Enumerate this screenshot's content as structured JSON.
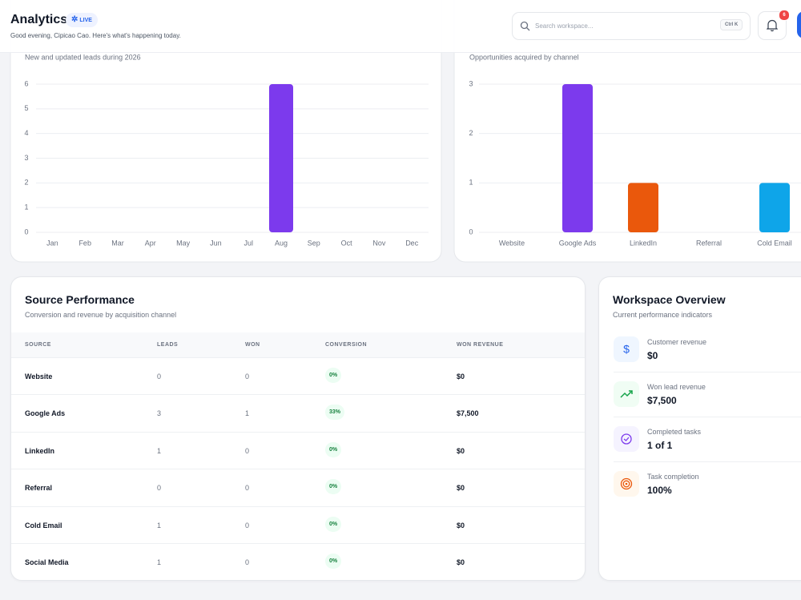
{
  "header": {
    "title": "Analytics",
    "badge": "LIVE",
    "subtitle": "Good evening, Cipicao Cao. Here's what's happening today.",
    "search_placeholder": "Search workspace...",
    "shortcut": "Ctrl K",
    "notifications": "6"
  },
  "chart_data": [
    {
      "type": "bar",
      "subtitle": "New and updated leads during 2026",
      "categories": [
        "Jan",
        "Feb",
        "Mar",
        "Apr",
        "May",
        "Jun",
        "Jul",
        "Aug",
        "Sep",
        "Oct",
        "Nov",
        "Dec"
      ],
      "values": [
        0,
        0,
        0,
        0,
        0,
        0,
        0,
        6,
        0,
        0,
        0,
        0
      ],
      "color": "#7c3aed",
      "ylim": [
        0,
        6
      ],
      "yticks": [
        0,
        1,
        2,
        3,
        4,
        5,
        6
      ],
      "grid": true
    },
    {
      "type": "bar",
      "subtitle": "Opportunities acquired by channel",
      "categories": [
        "Website",
        "Google Ads",
        "LinkedIn",
        "Referral",
        "Cold Email"
      ],
      "values": [
        0,
        3,
        1,
        0,
        1
      ],
      "colors": [
        "#7c3aed",
        "#7c3aed",
        "#ea580c",
        "#0ea5e9",
        "#0ea5e9"
      ],
      "ylim": [
        0,
        3
      ],
      "yticks": [
        0,
        1,
        2,
        3
      ],
      "grid": true
    }
  ],
  "source_performance": {
    "title": "Source Performance",
    "subtitle": "Conversion and revenue by acquisition channel",
    "columns": [
      "SOURCE",
      "LEADS",
      "WON",
      "CONVERSION",
      "WON REVENUE"
    ],
    "rows": [
      [
        "Website",
        "0",
        "0",
        "0%",
        "$0"
      ],
      [
        "Google Ads",
        "3",
        "1",
        "33%",
        "$7,500"
      ],
      [
        "LinkedIn",
        "1",
        "0",
        "0%",
        "$0"
      ],
      [
        "Referral",
        "0",
        "0",
        "0%",
        "$0"
      ],
      [
        "Cold Email",
        "1",
        "0",
        "0%",
        "$0"
      ],
      [
        "Social Media",
        "1",
        "0",
        "0%",
        "$0"
      ]
    ]
  },
  "workspace_overview": {
    "title": "Workspace Overview",
    "subtitle": "Current performance indicators",
    "items": [
      {
        "label": "Customer revenue",
        "value": "$0"
      },
      {
        "label": "Won lead revenue",
        "value": "$7,500"
      },
      {
        "label": "Completed tasks",
        "value": "1 of 1"
      },
      {
        "label": "Task completion",
        "value": "100%"
      }
    ]
  }
}
